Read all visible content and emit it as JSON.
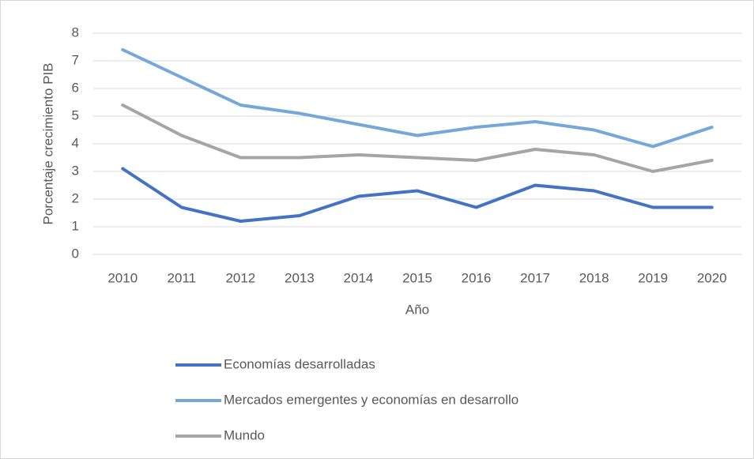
{
  "chart_data": {
    "type": "line",
    "xlabel": "Año",
    "ylabel": "Porcentaje crecimiento PIB",
    "categories": [
      "2010",
      "2011",
      "2012",
      "2013",
      "2014",
      "2015",
      "2016",
      "2017",
      "2018",
      "2019",
      "2020"
    ],
    "series": [
      {
        "name": "Economías desarrolladas",
        "color": "#4472c4",
        "values": [
          3.1,
          1.7,
          1.2,
          1.4,
          2.1,
          2.3,
          1.7,
          2.5,
          2.3,
          1.7,
          1.7
        ]
      },
      {
        "name": "Mercados emergentes y economías en desarrollo",
        "color": "#75a7d8",
        "values": [
          7.4,
          6.4,
          5.4,
          5.1,
          4.7,
          4.3,
          4.6,
          4.8,
          4.5,
          3.9,
          4.6
        ]
      },
      {
        "name": "Mundo",
        "color": "#a5a5a5",
        "values": [
          5.4,
          4.3,
          3.5,
          3.5,
          3.6,
          3.5,
          3.4,
          3.8,
          3.6,
          3.0,
          3.4
        ]
      }
    ],
    "ylim": [
      0,
      8
    ],
    "yticks": [
      0,
      1,
      2,
      3,
      4,
      5,
      6,
      7,
      8
    ],
    "grid": true,
    "legend": "bottom"
  }
}
